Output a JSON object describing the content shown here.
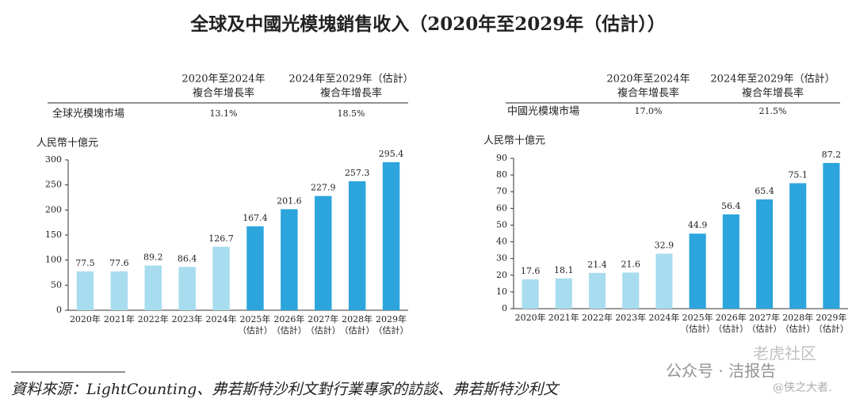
{
  "title": "全球及中國光模塊銷售收入（2020年至2029年（估計））",
  "chart_data": [
    {
      "type": "bar",
      "table": {
        "headers": [
          [
            "2020年至2024年",
            "複合年增長率"
          ],
          [
            "2024年至2029年（估計）",
            "複合年增長率"
          ]
        ],
        "row": [
          "全球光模塊市場",
          "13.1%",
          "18.5%"
        ]
      },
      "y_label": "人民幣十億元",
      "categories": [
        [
          "2020年"
        ],
        [
          "2021年"
        ],
        [
          "2022年"
        ],
        [
          "2023年"
        ],
        [
          "2024年"
        ],
        [
          "2025年",
          "（估計）"
        ],
        [
          "2026年",
          "（估計）"
        ],
        [
          "2027年",
          "（估計）"
        ],
        [
          "2028年",
          "（估計）"
        ],
        [
          "2029年",
          "（估計）"
        ]
      ],
      "values": [
        77.5,
        77.6,
        89.2,
        86.4,
        126.7,
        167.4,
        201.6,
        227.9,
        257.3,
        295.4
      ],
      "colors": [
        "#a8dcef",
        "#a8dcef",
        "#a8dcef",
        "#a8dcef",
        "#a8dcef",
        "#2ba5dc",
        "#2ba5dc",
        "#2ba5dc",
        "#2ba5dc",
        "#2ba5dc"
      ],
      "ylim": [
        0,
        300
      ],
      "yticks": [
        0,
        50,
        100,
        150,
        200,
        250,
        300
      ]
    },
    {
      "type": "bar",
      "table": {
        "headers": [
          [
            "2020年至2024年",
            "複合年增長率"
          ],
          [
            "2024年至2029年（估計）",
            "複合年增長率"
          ]
        ],
        "row": [
          "中國光模塊市場",
          "17.0%",
          "21.5%"
        ]
      },
      "y_label": "人民幣十億元",
      "categories": [
        [
          "2020年"
        ],
        [
          "2021年"
        ],
        [
          "2022年"
        ],
        [
          "2023年"
        ],
        [
          "2024年"
        ],
        [
          "2025年",
          "（估計）"
        ],
        [
          "2026年",
          "（估計）"
        ],
        [
          "2027年",
          "（估計）"
        ],
        [
          "2028年",
          "（估計）"
        ],
        [
          "2029年",
          "（估計）"
        ]
      ],
      "values": [
        17.6,
        18.1,
        21.4,
        21.6,
        32.9,
        44.9,
        56.4,
        65.4,
        75.1,
        87.2
      ],
      "colors": [
        "#a8dcef",
        "#a8dcef",
        "#a8dcef",
        "#a8dcef",
        "#a8dcef",
        "#2ba5dc",
        "#2ba5dc",
        "#2ba5dc",
        "#2ba5dc",
        "#2ba5dc"
      ],
      "ylim": [
        0,
        90
      ],
      "yticks": [
        0,
        10,
        20,
        30,
        40,
        50,
        60,
        70,
        80,
        90
      ]
    }
  ],
  "source": "資料來源：LightCounting、弗若斯特沙利文對行業專家的訪談、弗若斯特沙利文",
  "watermark": [
    "老虎社区",
    "公众号 · 洁报告",
    "@侠之大者."
  ]
}
